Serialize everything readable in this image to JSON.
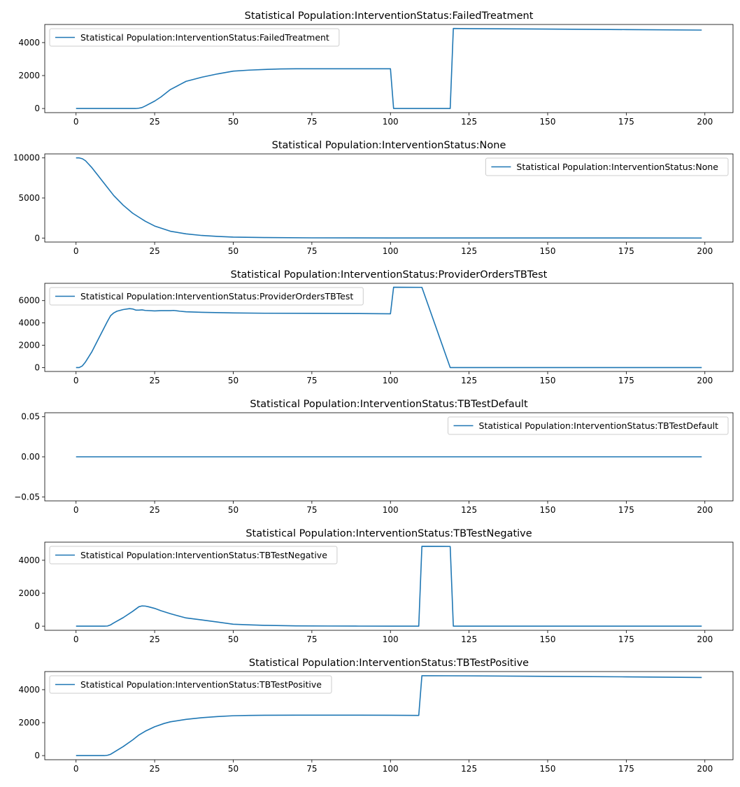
{
  "figure": {
    "background": "#ffffff",
    "line_color": "#1f77b4"
  },
  "chart_data": [
    {
      "type": "line",
      "title": "Statistical Population:InterventionStatus:FailedTreatment",
      "xlim": [
        -9.95,
        208.95
      ],
      "ylim": [
        -250,
        5100
      ],
      "xticks": [
        0,
        25,
        50,
        75,
        100,
        125,
        150,
        175,
        200
      ],
      "yticks": [
        0,
        2000,
        4000
      ],
      "legend_loc": "upper-left",
      "series": [
        {
          "name": "Statistical Population:InterventionStatus:FailedTreatment",
          "x": [
            0,
            19,
            20,
            21,
            22,
            25,
            27,
            30,
            33,
            35,
            38,
            40,
            45,
            50,
            55,
            60,
            65,
            70,
            75,
            80,
            90,
            100,
            101,
            110,
            119,
            120,
            125,
            150,
            175,
            199
          ],
          "y": [
            0,
            0,
            20,
            60,
            150,
            450,
            700,
            1150,
            1450,
            1650,
            1800,
            1900,
            2100,
            2270,
            2330,
            2370,
            2400,
            2410,
            2410,
            2410,
            2410,
            2410,
            0,
            0,
            0,
            4860,
            4850,
            4820,
            4790,
            4760
          ]
        }
      ]
    },
    {
      "type": "line",
      "title": "Statistical Population:InterventionStatus:None",
      "xlim": [
        -9.95,
        208.95
      ],
      "ylim": [
        -500,
        10500
      ],
      "xticks": [
        0,
        25,
        50,
        75,
        100,
        125,
        150,
        175,
        200
      ],
      "yticks": [
        0,
        5000,
        10000
      ],
      "legend_loc": "upper-right",
      "series": [
        {
          "name": "Statistical Population:InterventionStatus:None",
          "x": [
            0,
            1,
            2,
            3,
            5,
            7,
            10,
            12,
            15,
            18,
            20,
            22,
            25,
            30,
            35,
            40,
            45,
            50,
            60,
            75,
            100,
            150,
            199
          ],
          "y": [
            10000,
            10000,
            9900,
            9650,
            8800,
            7800,
            6300,
            5300,
            4100,
            3100,
            2600,
            2100,
            1500,
            850,
            520,
            320,
            200,
            120,
            60,
            25,
            10,
            5,
            3
          ]
        }
      ]
    },
    {
      "type": "line",
      "title": "Statistical Population:InterventionStatus:ProviderOrdersTBTest",
      "xlim": [
        -9.95,
        208.95
      ],
      "ylim": [
        -350,
        7550
      ],
      "xticks": [
        0,
        25,
        50,
        75,
        100,
        125,
        150,
        175,
        200
      ],
      "yticks": [
        0,
        2000,
        4000,
        6000
      ],
      "legend_loc": "upper-left",
      "series": [
        {
          "name": "Statistical Population:InterventionStatus:ProviderOrdersTBTest",
          "x": [
            0,
            1,
            2,
            3,
            5,
            7,
            9,
            10,
            11,
            12,
            13,
            15,
            17,
            18,
            19,
            20,
            21,
            22,
            25,
            27,
            30,
            31,
            33,
            35,
            40,
            50,
            60,
            75,
            90,
            100,
            101,
            110,
            119,
            120,
            150,
            199
          ],
          "y": [
            0,
            0,
            150,
            500,
            1400,
            2500,
            3600,
            4150,
            4650,
            4900,
            5050,
            5200,
            5280,
            5250,
            5150,
            5150,
            5170,
            5120,
            5080,
            5100,
            5100,
            5120,
            5050,
            5000,
            4950,
            4900,
            4870,
            4860,
            4840,
            4820,
            7200,
            7190,
            0,
            0,
            0,
            0
          ]
        }
      ]
    },
    {
      "type": "line",
      "title": "Statistical Population:InterventionStatus:TBTestDefault",
      "xlim": [
        -9.95,
        208.95
      ],
      "ylim": [
        -0.055,
        0.055
      ],
      "xticks": [
        0,
        25,
        50,
        75,
        100,
        125,
        150,
        175,
        200
      ],
      "yticks": [
        -0.05,
        0.0,
        0.05
      ],
      "ytick_labels": [
        "−0.05",
        "0.00",
        "0.05"
      ],
      "legend_loc": "upper-right",
      "series": [
        {
          "name": "Statistical Population:InterventionStatus:TBTestDefault",
          "x": [
            0,
            199
          ],
          "y": [
            0,
            0
          ]
        }
      ]
    },
    {
      "type": "line",
      "title": "Statistical Population:InterventionStatus:TBTestNegative",
      "xlim": [
        -9.95,
        208.95
      ],
      "ylim": [
        -250,
        5100
      ],
      "xticks": [
        0,
        25,
        50,
        75,
        100,
        125,
        150,
        175,
        200
      ],
      "yticks": [
        0,
        2000,
        4000
      ],
      "legend_loc": "upper-left",
      "series": [
        {
          "name": "Statistical Population:InterventionStatus:TBTestNegative",
          "x": [
            0,
            9,
            10,
            11,
            12,
            15,
            18,
            20,
            21,
            22,
            23,
            25,
            27,
            30,
            33,
            35,
            40,
            45,
            50,
            55,
            60,
            70,
            80,
            90,
            100,
            109,
            110,
            119,
            120,
            150,
            199
          ],
          "y": [
            0,
            0,
            10,
            80,
            200,
            520,
            900,
            1180,
            1230,
            1220,
            1180,
            1080,
            940,
            760,
            600,
            500,
            380,
            250,
            120,
            80,
            50,
            20,
            10,
            5,
            3,
            0,
            4850,
            4840,
            0,
            0,
            0
          ]
        }
      ]
    },
    {
      "type": "line",
      "title": "Statistical Population:InterventionStatus:TBTestPositive",
      "xlim": [
        -9.95,
        208.95
      ],
      "ylim": [
        -250,
        5100
      ],
      "xticks": [
        0,
        25,
        50,
        75,
        100,
        125,
        150,
        175,
        200
      ],
      "yticks": [
        0,
        2000,
        4000
      ],
      "legend_loc": "upper-left",
      "series": [
        {
          "name": "Statistical Population:InterventionStatus:TBTestPositive",
          "x": [
            0,
            9,
            10,
            11,
            12,
            15,
            18,
            20,
            22,
            25,
            28,
            30,
            35,
            40,
            45,
            50,
            55,
            60,
            70,
            80,
            90,
            100,
            109,
            110,
            125,
            150,
            175,
            199
          ],
          "y": [
            0,
            0,
            20,
            80,
            200,
            550,
            950,
            1250,
            1480,
            1750,
            1950,
            2050,
            2200,
            2300,
            2370,
            2420,
            2440,
            2450,
            2455,
            2455,
            2455,
            2450,
            2440,
            4850,
            4840,
            4810,
            4780,
            4740
          ]
        }
      ]
    }
  ]
}
